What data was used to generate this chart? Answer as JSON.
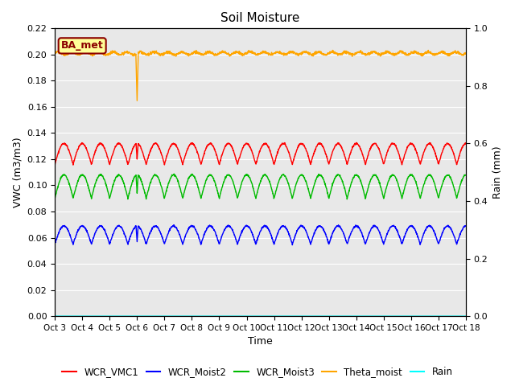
{
  "title": "Soil Moisture",
  "xlabel": "Time",
  "ylabel_left": "VWC (m3/m3)",
  "ylabel_right": "Rain (mm)",
  "ylim_left": [
    0.0,
    0.22
  ],
  "ylim_right": [
    0.0,
    1.0
  ],
  "yticks_left": [
    0.0,
    0.02,
    0.04,
    0.06,
    0.08,
    0.1,
    0.12,
    0.14,
    0.16,
    0.18,
    0.2,
    0.22
  ],
  "yticks_right": [
    0.0,
    0.2,
    0.4,
    0.6,
    0.8,
    1.0
  ],
  "xtick_labels": [
    "Oct 3",
    "Oct 4",
    "Oct 5",
    "Oct 6",
    "Oct 7",
    "Oct 8",
    "Oct 9",
    "Oct 10",
    "Oct 11",
    "Oct 12",
    "Oct 13",
    "Oct 14",
    "Oct 15",
    "Oct 16",
    "Oct 17",
    "Oct 18"
  ],
  "bg_color": "#e8e8e8",
  "fig_bg_color": "#ffffff",
  "annotation_label": "BA_met",
  "annotation_color": "#8b0000",
  "annotation_bg": "#ffff99",
  "series_colors": {
    "WCR_VMC1": "#ff0000",
    "WCR_Moist2": "#0000ff",
    "WCR_Moist3": "#00bb00",
    "Theta_moist": "#ffa500",
    "Rain": "#00ffff"
  },
  "theta_base": 0.201,
  "theta_amp": 0.001,
  "theta_freq_per_day": 2.0,
  "theta_dip_day": 3.0,
  "theta_dip_val": 0.165,
  "red_base": 0.124,
  "red_amp": 0.008,
  "red_freq_per_day": 1.5,
  "blue_base": 0.062,
  "blue_amp": 0.007,
  "blue_freq_per_day": 1.5,
  "green_base": 0.099,
  "green_amp": 0.009,
  "green_freq_per_day": 1.5,
  "total_days": 15,
  "n_points": 2000,
  "linewidth": 1.0,
  "title_fontsize": 11,
  "axis_label_fontsize": 9,
  "tick_fontsize": 8,
  "xtick_fontsize": 7.5,
  "legend_fontsize": 8.5
}
